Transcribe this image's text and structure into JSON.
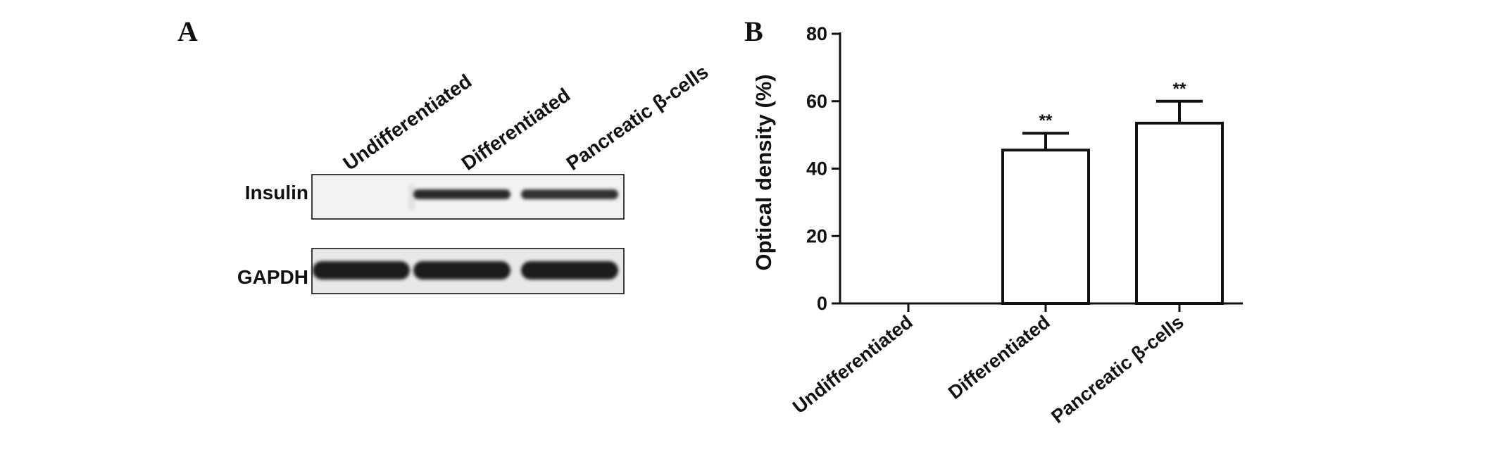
{
  "panel_a": {
    "letter": "A",
    "lanes": [
      "Undifferentiated",
      "Differentiated",
      "Pancreatic β-cells"
    ],
    "blots": [
      {
        "label": "Insulin",
        "intensities": [
          0,
          0.85,
          0.8
        ]
      },
      {
        "label": "GAPDH",
        "intensities": [
          1,
          1,
          1
        ]
      }
    ]
  },
  "panel_b": {
    "letter": "B"
  },
  "chart_data": {
    "type": "bar",
    "title": "",
    "xlabel": "",
    "ylabel": "Optical density (%)",
    "ylim": [
      0,
      80
    ],
    "yticks": [
      0,
      20,
      40,
      60,
      80
    ],
    "categories": [
      "Undifferentiated",
      "Differentiated",
      "Pancreatic β-cells"
    ],
    "values": [
      0,
      45.5,
      53.5
    ],
    "errors": [
      0,
      5,
      6.5
    ],
    "significance": [
      "",
      "**",
      "**"
    ],
    "bar_color": "#ffffff",
    "bar_edge_color": "#111111",
    "grid": false,
    "legend": "none"
  }
}
